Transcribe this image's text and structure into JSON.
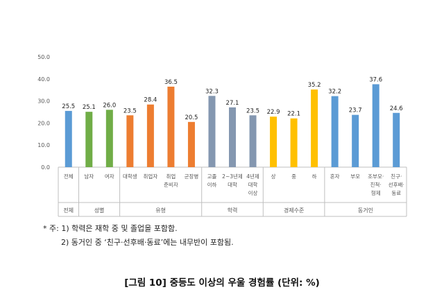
{
  "chart_data": {
    "type": "bar",
    "ylim": [
      0,
      50
    ],
    "yticks": [
      "0.0",
      "10.0",
      "20.0",
      "30.0",
      "40.0",
      "50.0"
    ],
    "grid": false,
    "categories": [
      {
        "label": [
          "전체"
        ],
        "value": 25.5,
        "value_label": "25.5",
        "color": "#5B9BD5"
      },
      {
        "label": [
          "남자"
        ],
        "value": 25.1,
        "value_label": "25.1",
        "color": "#70AD47"
      },
      {
        "label": [
          "여자"
        ],
        "value": 26.0,
        "value_label": "26.0",
        "color": "#70AD47"
      },
      {
        "label": [
          "대학생"
        ],
        "value": 23.5,
        "value_label": "23.5",
        "color": "#ED7D31"
      },
      {
        "label": [
          "취업자"
        ],
        "value": 28.4,
        "value_label": "28.4",
        "color": "#ED7D31"
      },
      {
        "label": [
          "취업",
          "준비자"
        ],
        "value": 36.5,
        "value_label": "36.5",
        "color": "#ED7D31"
      },
      {
        "label": [
          "군장병"
        ],
        "value": 20.5,
        "value_label": "20.5",
        "color": "#ED7D31"
      },
      {
        "label": [
          "고졸",
          "이하"
        ],
        "value": 32.3,
        "value_label": "32.3",
        "color": "#8497B0"
      },
      {
        "label": [
          "2~3년제",
          "대학"
        ],
        "value": 27.1,
        "value_label": "27.1",
        "color": "#8497B0"
      },
      {
        "label": [
          "4년제",
          "대학",
          "이상"
        ],
        "value": 23.5,
        "value_label": "23.5",
        "color": "#8497B0"
      },
      {
        "label": [
          "상"
        ],
        "value": 22.9,
        "value_label": "22.9",
        "color": "#FFC000"
      },
      {
        "label": [
          "중"
        ],
        "value": 22.1,
        "value_label": "22.1",
        "color": "#FFC000"
      },
      {
        "label": [
          "하"
        ],
        "value": 35.2,
        "value_label": "35.2",
        "color": "#FFC000"
      },
      {
        "label": [
          "혼자"
        ],
        "value": 32.2,
        "value_label": "32.2",
        "color": "#5B9BD5"
      },
      {
        "label": [
          "부모"
        ],
        "value": 23.7,
        "value_label": "23.7",
        "color": "#5B9BD5"
      },
      {
        "label": [
          "조부모·",
          "친척·",
          "형제"
        ],
        "value": 37.6,
        "value_label": "37.6",
        "color": "#5B9BD5"
      },
      {
        "label": [
          "친구·",
          "선후배·",
          "동료"
        ],
        "value": 24.6,
        "value_label": "24.6",
        "color": "#5B9BD5"
      }
    ],
    "groups": [
      {
        "label": "전체",
        "start": 0,
        "end": 0
      },
      {
        "label": "성별",
        "start": 1,
        "end": 2
      },
      {
        "label": "유형",
        "start": 3,
        "end": 6
      },
      {
        "label": "학력",
        "start": 7,
        "end": 9
      },
      {
        "label": "경제수준",
        "start": 10,
        "end": 12
      },
      {
        "label": "동거인",
        "start": 13,
        "end": 16
      }
    ]
  },
  "notes": {
    "line1": "* 주: 1) 학력은 재학 중 및 졸업을 포함함.",
    "line2": "2) 동거인 중 ‘친구·선후배·동료’에는 내무반이 포함됨."
  },
  "caption": "[그림 10] 중등도 이상의 우울 경험률 (단위: %)"
}
